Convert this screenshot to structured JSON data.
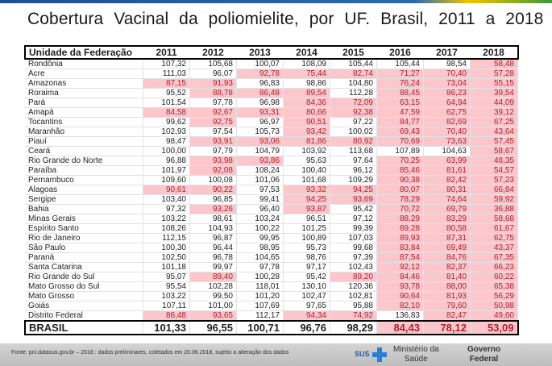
{
  "title": "Cobertura Vacinal da poliomielite, por UF. Brasil, 2011 a 2018",
  "table": {
    "headers": [
      "Unidade da Federação",
      "2011",
      "2012",
      "2013",
      "2014",
      "2015",
      "2016",
      "2017",
      "2018"
    ],
    "rows": [
      [
        "Rondônia",
        "107,32",
        "105,68",
        "100,07",
        "108,09",
        "105,44",
        "105,44",
        "98,54",
        "58,48"
      ],
      [
        "Acre",
        "111,03",
        "96,07",
        "92,78",
        "75,44",
        "82,74",
        "71,27",
        "70,40",
        "57,28"
      ],
      [
        "Amazonas",
        "87,15",
        "91,93",
        "96,83",
        "98,86",
        "104,80",
        "76,24",
        "73,04",
        "55,15"
      ],
      [
        "Roraima",
        "95,52",
        "88,78",
        "86,48",
        "89,54",
        "112,28",
        "88,45",
        "86,23",
        "39,54"
      ],
      [
        "Pará",
        "101,54",
        "97,78",
        "96,98",
        "84,36",
        "72,09",
        "63,15",
        "64,94",
        "44,09"
      ],
      [
        "Amapá",
        "84,58",
        "92,67",
        "93,31",
        "80,66",
        "92,38",
        "47,59",
        "62,75",
        "39,12"
      ],
      [
        "Tocantins",
        "99,62",
        "92,75",
        "96,97",
        "90,51",
        "97,22",
        "84,77",
        "82,69",
        "67,25"
      ],
      [
        "Maranhão",
        "102,93",
        "97,54",
        "105,73",
        "93,42",
        "100,02",
        "69,43",
        "70,40",
        "43,64"
      ],
      [
        "Piauí",
        "98,47",
        "93,91",
        "93,06",
        "81,86",
        "80,92",
        "70,69",
        "73,63",
        "57,45"
      ],
      [
        "Ceará",
        "100,00",
        "97,79",
        "104,79",
        "103,92",
        "113,68",
        "107,89",
        "104,63",
        "58,67"
      ],
      [
        "Rio Grande do Norte",
        "96,88",
        "93,98",
        "93,86",
        "95,63",
        "97,64",
        "70,25",
        "63,99",
        "48,35"
      ],
      [
        "Paraíba",
        "101,97",
        "92,08",
        "108,24",
        "100,40",
        "96,12",
        "85,46",
        "81,61",
        "54,57"
      ],
      [
        "Pernambuco",
        "109,60",
        "100,08",
        "101,06",
        "101,68",
        "109,29",
        "90,38",
        "82,42",
        "57,23"
      ],
      [
        "Alagoas",
        "90,61",
        "90,22",
        "97,53",
        "93,32",
        "94,25",
        "80,07",
        "80,31",
        "66,84"
      ],
      [
        "Sergipe",
        "103,40",
        "96,85",
        "99,41",
        "94,25",
        "93,69",
        "78,29",
        "74,64",
        "59,92"
      ],
      [
        "Bahia",
        "97,32",
        "93,26",
        "96,40",
        "93,87",
        "95,42",
        "70,72",
        "69,79",
        "36,88"
      ],
      [
        "Minas Gerais",
        "103,22",
        "98,61",
        "103,24",
        "96,51",
        "97,12",
        "88,29",
        "83,29",
        "58,68"
      ],
      [
        "Espírito Santo",
        "108,26",
        "104,93",
        "100,22",
        "101,25",
        "99,39",
        "89,28",
        "80,58",
        "61,67"
      ],
      [
        "Rio de Janeiro",
        "112,15",
        "96,87",
        "99,95",
        "100,89",
        "107,03",
        "89,93",
        "87,31",
        "62,75"
      ],
      [
        "São Paulo",
        "100,30",
        "96,44",
        "98,95",
        "95,73",
        "99,68",
        "83,84",
        "69,49",
        "43,37"
      ],
      [
        "Paraná",
        "102,50",
        "96,78",
        "104,65",
        "98,76",
        "97,39",
        "87,54",
        "84,76",
        "67,35"
      ],
      [
        "Santa Catarina",
        "101,18",
        "99,97",
        "97,78",
        "97,17",
        "102,43",
        "92,12",
        "82,37",
        "66,23"
      ],
      [
        "Rio Grande do Sul",
        "95,07",
        "89,40",
        "100,28",
        "95,42",
        "89,20",
        "84,46",
        "81,40",
        "60,22"
      ],
      [
        "Mato Grosso do Sul",
        "95,54",
        "102,28",
        "118,01",
        "130,10",
        "120,36",
        "93,78",
        "88,00",
        "65,38"
      ],
      [
        "Mato Grosso",
        "103,22",
        "99,50",
        "101,20",
        "102,47",
        "102,81",
        "90,64",
        "81,93",
        "56,29"
      ],
      [
        "Goiás",
        "107,11",
        "101,00",
        "107,69",
        "97,65",
        "95,88",
        "82,10",
        "79,60",
        "50,98"
      ],
      [
        "Distrito Federal",
        "86,48",
        "93,65",
        "112,17",
        "94,34",
        "74,92",
        "136,83",
        "82,47",
        "49,60"
      ]
    ],
    "total": [
      "BRASIL",
      "101,33",
      "96,55",
      "100,71",
      "96,76",
      "98,29",
      "84,43",
      "78,12",
      "53,09"
    ],
    "highlight_below": 95,
    "highlight_color": "#fbc7cd",
    "highlight_text_color": "#b0202c"
  },
  "footer": {
    "source": "Fonte: pni.datasus.gov.br – 2018 : dados preliminares, coletados em 20.06.2018, sujeito a alteração dos dados",
    "sus": "SUS",
    "ministry_line1": "Ministério da",
    "ministry_line2": "Saúde",
    "gov_line1": "Governo",
    "gov_line2": "Federal"
  }
}
